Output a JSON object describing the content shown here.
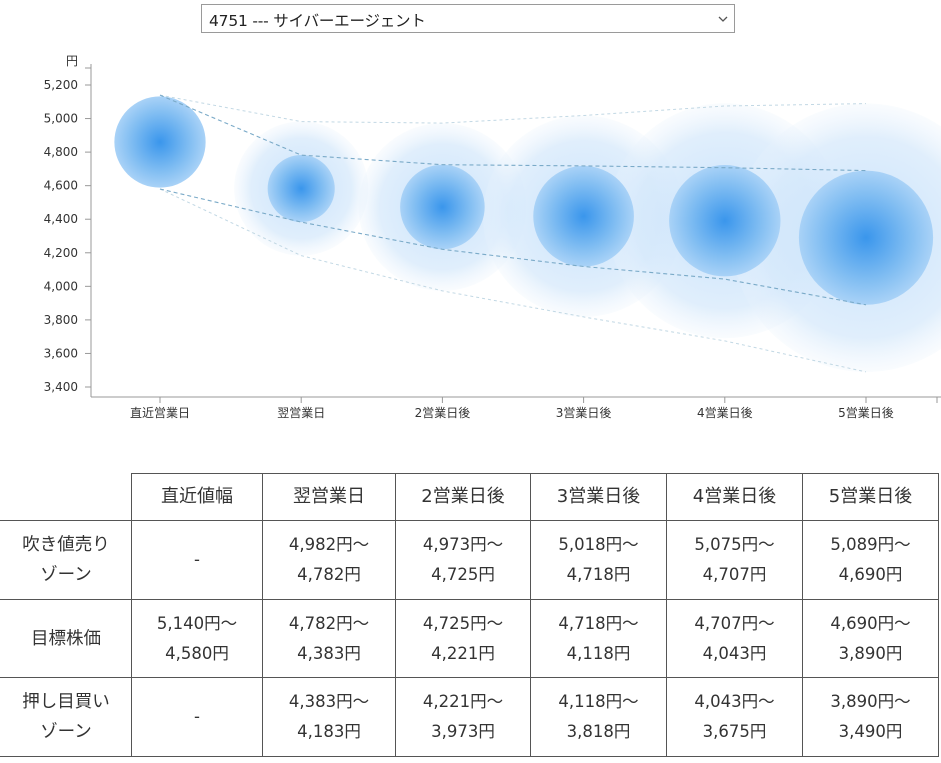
{
  "selector": {
    "selected": "4751 --- サイバーエージェント"
  },
  "chart_data": {
    "type": "scatter",
    "title": "",
    "ylabel": "円",
    "xlabel": "",
    "ylim": [
      3400,
      5200
    ],
    "yticks": [
      5200,
      5000,
      4800,
      4600,
      4400,
      4200,
      4000,
      3800,
      3600,
      3400
    ],
    "ytick_labels": [
      "5,200",
      "5,000",
      "4,800",
      "4,600",
      "4,400",
      "4,200",
      "4,000",
      "3,800",
      "3,600",
      "3,400"
    ],
    "categories": [
      "直近営業日",
      "翌営業日",
      "2営業日後",
      "3営業日後",
      "4営業日後",
      "5営業日後"
    ],
    "zones": {
      "sell_zone_upper": [
        null,
        4982,
        4973,
        5018,
        5075,
        5089
      ],
      "target_upper": [
        5140,
        4782,
        4725,
        4718,
        4707,
        4690
      ],
      "target_lower": [
        4580,
        4383,
        4221,
        4118,
        4043,
        3890
      ],
      "buy_zone_lower": [
        null,
        4183,
        3973,
        3818,
        3675,
        3490
      ]
    },
    "colors": {
      "bubble_core": "#5aaaf0",
      "bubble_halo": "#bcdcf8",
      "target_line": "#7aaac8",
      "outer_line": "#c2d8e4",
      "axis": "#999999"
    }
  },
  "table": {
    "headers": [
      "",
      "直近値幅",
      "翌営業日",
      "2営業日後",
      "3営業日後",
      "4営業日後",
      "5営業日後"
    ],
    "rows": [
      {
        "label": [
          "吹き値売り",
          "ゾーン"
        ],
        "cells": [
          [
            "-"
          ],
          [
            "4,982円～",
            "4,782円"
          ],
          [
            "4,973円～",
            "4,725円"
          ],
          [
            "5,018円～",
            "4,718円"
          ],
          [
            "5,075円～",
            "4,707円"
          ],
          [
            "5,089円～",
            "4,690円"
          ]
        ]
      },
      {
        "label": [
          "目標株価"
        ],
        "cells": [
          [
            "5,140円～",
            "4,580円"
          ],
          [
            "4,782円～",
            "4,383円"
          ],
          [
            "4,725円～",
            "4,221円"
          ],
          [
            "4,718円～",
            "4,118円"
          ],
          [
            "4,707円～",
            "4,043円"
          ],
          [
            "4,690円～",
            "3,890円"
          ]
        ]
      },
      {
        "label": [
          "押し目買い",
          "ゾーン"
        ],
        "cells": [
          [
            "-"
          ],
          [
            "4,383円～",
            "4,183円"
          ],
          [
            "4,221円～",
            "3,973円"
          ],
          [
            "4,118円～",
            "3,818円"
          ],
          [
            "4,043円～",
            "3,675円"
          ],
          [
            "3,890円～",
            "3,490円"
          ]
        ]
      }
    ]
  }
}
